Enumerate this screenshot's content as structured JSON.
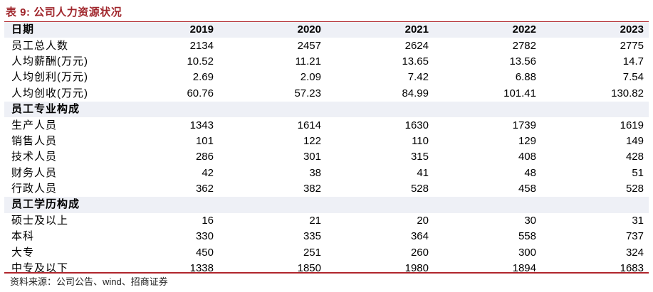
{
  "title": {
    "prefix": "表 9:",
    "text": "公司人力资源状况"
  },
  "columns": [
    "日期",
    "2019",
    "2020",
    "2021",
    "2022",
    "2023"
  ],
  "rows": [
    {
      "kind": "data",
      "label": "员工总人数",
      "values": [
        "2134",
        "2457",
        "2624",
        "2782",
        "2775"
      ]
    },
    {
      "kind": "data",
      "label": "人均薪酬(万元)",
      "values": [
        "10.52",
        "11.21",
        "13.65",
        "13.56",
        "14.7"
      ]
    },
    {
      "kind": "data",
      "label": "人均创利(万元)",
      "values": [
        "2.69",
        "2.09",
        "7.42",
        "6.88",
        "7.54"
      ]
    },
    {
      "kind": "data",
      "label": "人均创收(万元)",
      "values": [
        "60.76",
        "57.23",
        "84.99",
        "101.41",
        "130.82"
      ]
    },
    {
      "kind": "section",
      "label": "员工专业构成"
    },
    {
      "kind": "data",
      "label": "生产人员",
      "values": [
        "1343",
        "1614",
        "1630",
        "1739",
        "1619"
      ]
    },
    {
      "kind": "data",
      "label": "销售人员",
      "values": [
        "101",
        "122",
        "110",
        "129",
        "149"
      ]
    },
    {
      "kind": "data",
      "label": "技术人员",
      "values": [
        "286",
        "301",
        "315",
        "408",
        "428"
      ]
    },
    {
      "kind": "data",
      "label": "财务人员",
      "values": [
        "42",
        "38",
        "41",
        "48",
        "51"
      ]
    },
    {
      "kind": "data",
      "label": "行政人员",
      "values": [
        "362",
        "382",
        "528",
        "458",
        "528"
      ]
    },
    {
      "kind": "section",
      "label": "员工学历构成"
    },
    {
      "kind": "data",
      "label": "硕士及以上",
      "values": [
        "16",
        "21",
        "20",
        "30",
        "31"
      ]
    },
    {
      "kind": "data",
      "label": "本科",
      "values": [
        "330",
        "335",
        "364",
        "558",
        "737"
      ]
    },
    {
      "kind": "data",
      "label": "大专",
      "values": [
        "450",
        "251",
        "260",
        "300",
        "324"
      ]
    },
    {
      "kind": "data",
      "label": "中专及以下",
      "values": [
        "1338",
        "1850",
        "1980",
        "1894",
        "1683"
      ]
    }
  ],
  "source": "资料来源：公司公告、wind、招商证券"
}
